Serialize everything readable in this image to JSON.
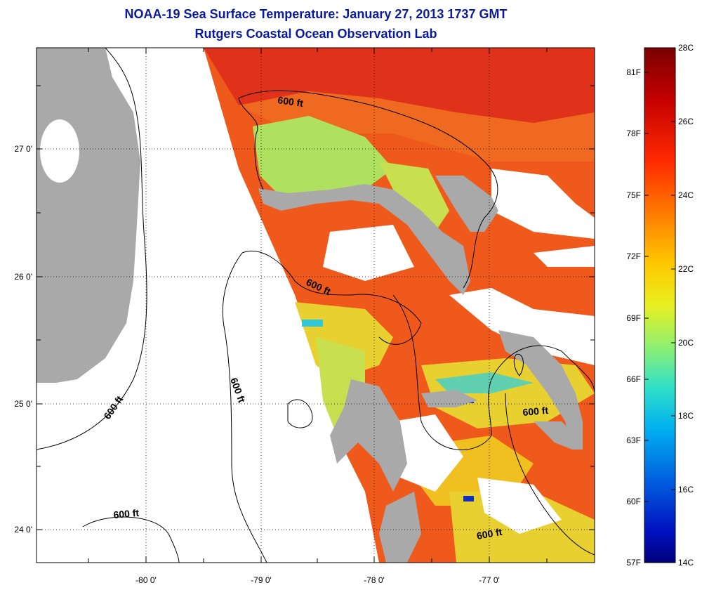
{
  "title": {
    "line1": "NOAA-19 Sea Surface Temperature:  January 27, 2013 1737 GMT",
    "line2": "Rutgers Coastal Ocean Observation Lab"
  },
  "map": {
    "lon_labels": [
      "-80 0'",
      "-79 0'",
      "-78 0'",
      "-77 0'"
    ],
    "lat_labels": [
      "27 0'",
      "26 0'",
      "25 0'",
      "24 0'"
    ],
    "contour_labels": [
      "600 ft",
      "600 ft",
      "600 ft",
      "600 ft",
      "600 ft",
      "600 ft"
    ],
    "colors": {
      "land": "#a9a9a9",
      "nodata": "#ffffff",
      "warm": "#e8431c",
      "hot": "#d6201a",
      "orange": "#f2741f",
      "yellow": "#e8d020",
      "green": "#b8e050",
      "cyan": "#30c8d8",
      "blue": "#1030c0"
    }
  },
  "colorbar": {
    "celsius": [
      "28C",
      "26C",
      "24C",
      "22C",
      "20C",
      "18C",
      "16C",
      "14C"
    ],
    "fahrenheit": [
      "81F",
      "78F",
      "75F",
      "72F",
      "69F",
      "66F",
      "63F",
      "60F",
      "57F"
    ]
  }
}
